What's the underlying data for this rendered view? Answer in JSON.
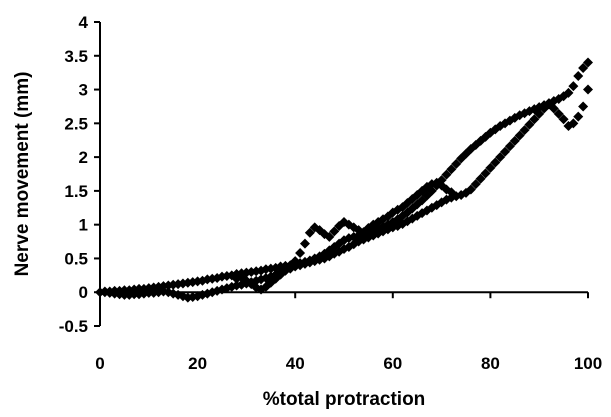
{
  "chart_data": {
    "type": "scatter",
    "title": "",
    "xlabel": "%total protraction",
    "ylabel": "Nerve movement (mm)",
    "xlim": [
      0,
      100
    ],
    "ylim": [
      -0.5,
      4
    ],
    "x_ticks": [
      0,
      20,
      40,
      60,
      80,
      100
    ],
    "y_ticks": [
      -0.5,
      0,
      0.5,
      1,
      1.5,
      2,
      2.5,
      3,
      3.5,
      4
    ],
    "x_tick_labels": [
      "0",
      "20",
      "40",
      "60",
      "80",
      "100"
    ],
    "y_tick_labels": [
      "-0.5",
      "0",
      "0.5",
      "1",
      "1.5",
      "2",
      "2.5",
      "3",
      "3.5",
      "4"
    ],
    "grid": false,
    "legend": "none",
    "marker": "diamond",
    "marker_color": "#000000",
    "series": [
      {
        "points": [
          [
            0,
            0
          ],
          [
            1,
            0.01
          ],
          [
            2,
            0.01
          ],
          [
            3,
            0.02
          ],
          [
            4,
            0.02
          ],
          [
            5,
            0.03
          ],
          [
            6,
            0.03
          ],
          [
            7,
            0.04
          ],
          [
            8,
            0.05
          ],
          [
            9,
            0.05
          ],
          [
            10,
            0.06
          ],
          [
            11,
            0.07
          ],
          [
            12,
            0.08
          ],
          [
            13,
            0.09
          ],
          [
            14,
            0.1
          ],
          [
            15,
            0.11
          ],
          [
            16,
            0.12
          ],
          [
            17,
            0.13
          ],
          [
            18,
            0.14
          ],
          [
            19,
            0.15
          ],
          [
            20,
            0.16
          ],
          [
            21,
            0.17
          ],
          [
            22,
            0.19
          ],
          [
            23,
            0.2
          ],
          [
            24,
            0.21
          ],
          [
            25,
            0.23
          ],
          [
            26,
            0.24
          ],
          [
            27,
            0.25
          ],
          [
            28,
            0.27
          ],
          [
            29,
            0.28
          ],
          [
            30,
            0.29
          ],
          [
            31,
            0.3
          ],
          [
            32,
            0.31
          ],
          [
            33,
            0.32
          ],
          [
            34,
            0.34
          ],
          [
            35,
            0.35
          ],
          [
            36,
            0.36
          ],
          [
            37,
            0.38
          ],
          [
            38,
            0.39
          ],
          [
            39,
            0.4
          ],
          [
            40,
            0.42
          ],
          [
            41,
            0.43
          ],
          [
            42,
            0.45
          ],
          [
            43,
            0.47
          ],
          [
            44,
            0.5
          ],
          [
            45,
            0.53
          ],
          [
            46,
            0.57
          ],
          [
            47,
            0.62
          ],
          [
            48,
            0.67
          ],
          [
            49,
            0.72
          ],
          [
            50,
            0.77
          ],
          [
            51,
            0.8
          ],
          [
            52,
            0.82
          ],
          [
            53,
            0.84
          ],
          [
            54,
            0.86
          ],
          [
            55,
            0.88
          ],
          [
            56,
            0.91
          ],
          [
            57,
            0.94
          ],
          [
            58,
            0.97
          ],
          [
            59,
            1.0
          ],
          [
            60,
            1.04
          ],
          [
            61,
            1.08
          ],
          [
            62,
            1.13
          ],
          [
            63,
            1.18
          ],
          [
            64,
            1.24
          ],
          [
            65,
            1.3
          ],
          [
            66,
            1.36
          ],
          [
            67,
            1.43
          ],
          [
            68,
            1.5
          ],
          [
            69,
            1.58
          ],
          [
            70,
            1.66
          ],
          [
            71,
            1.74
          ],
          [
            72,
            1.82
          ],
          [
            73,
            1.9
          ],
          [
            74,
            1.98
          ],
          [
            75,
            2.05
          ],
          [
            76,
            2.12
          ],
          [
            77,
            2.18
          ],
          [
            78,
            2.24
          ],
          [
            79,
            2.3
          ],
          [
            80,
            2.36
          ],
          [
            81,
            2.41
          ],
          [
            82,
            2.46
          ],
          [
            83,
            2.5
          ],
          [
            84,
            2.54
          ],
          [
            85,
            2.58
          ],
          [
            86,
            2.62
          ],
          [
            87,
            2.65
          ],
          [
            88,
            2.68
          ],
          [
            89,
            2.71
          ],
          [
            90,
            2.74
          ],
          [
            91,
            2.77
          ],
          [
            92,
            2.8
          ],
          [
            93,
            2.83
          ],
          [
            94,
            2.86
          ],
          [
            95,
            2.9
          ],
          [
            96,
            2.95
          ],
          [
            97,
            3.05
          ],
          [
            98,
            3.2
          ],
          [
            99,
            3.32
          ],
          [
            100,
            3.4
          ]
        ]
      },
      {
        "points": [
          [
            100,
            3.0
          ],
          [
            99,
            2.75
          ],
          [
            98,
            2.6
          ],
          [
            97,
            2.5
          ],
          [
            96,
            2.46
          ],
          [
            95,
            2.56
          ],
          [
            94,
            2.64
          ],
          [
            93,
            2.72
          ],
          [
            92,
            2.78
          ],
          [
            91,
            2.72
          ],
          [
            90,
            2.64
          ],
          [
            89,
            2.56
          ],
          [
            88,
            2.48
          ],
          [
            87,
            2.4
          ],
          [
            86,
            2.32
          ],
          [
            85,
            2.24
          ],
          [
            84,
            2.16
          ],
          [
            83,
            2.08
          ],
          [
            82,
            2.0
          ],
          [
            81,
            1.92
          ],
          [
            80,
            1.84
          ],
          [
            79,
            1.76
          ],
          [
            78,
            1.68
          ],
          [
            77,
            1.6
          ],
          [
            76,
            1.52
          ],
          [
            75,
            1.47
          ],
          [
            74,
            1.44
          ],
          [
            73,
            1.42
          ],
          [
            72,
            1.4
          ],
          [
            71,
            1.37
          ],
          [
            70,
            1.33
          ],
          [
            69,
            1.29
          ],
          [
            68,
            1.25
          ],
          [
            67,
            1.21
          ],
          [
            66,
            1.17
          ],
          [
            65,
            1.13
          ],
          [
            64,
            1.09
          ],
          [
            63,
            1.05
          ],
          [
            62,
            1.01
          ],
          [
            61,
            0.98
          ],
          [
            60,
            0.96
          ],
          [
            59,
            0.93
          ],
          [
            58,
            0.9
          ],
          [
            57,
            0.87
          ],
          [
            56,
            0.84
          ],
          [
            55,
            0.81
          ],
          [
            54,
            0.78
          ],
          [
            53,
            0.75
          ],
          [
            52,
            0.71
          ],
          [
            51,
            0.67
          ],
          [
            50,
            0.64
          ],
          [
            49,
            0.6
          ],
          [
            48,
            0.57
          ],
          [
            47,
            0.53
          ],
          [
            46,
            0.5
          ],
          [
            45,
            0.48
          ],
          [
            44,
            0.46
          ],
          [
            43,
            0.44
          ],
          [
            42,
            0.42
          ],
          [
            41,
            0.4
          ],
          [
            40,
            0.38
          ],
          [
            39,
            0.35
          ],
          [
            38,
            0.32
          ],
          [
            37,
            0.29
          ],
          [
            36,
            0.26
          ],
          [
            35,
            0.23
          ],
          [
            34,
            0.21
          ],
          [
            33,
            0.19
          ],
          [
            32,
            0.17
          ],
          [
            31,
            0.15
          ],
          [
            30,
            0.13
          ],
          [
            29,
            0.11
          ],
          [
            28,
            0.1
          ],
          [
            27,
            0.08
          ],
          [
            26,
            0.06
          ],
          [
            25,
            0.04
          ],
          [
            24,
            0.02
          ],
          [
            23,
            0.0
          ],
          [
            22,
            -0.02
          ],
          [
            21,
            -0.04
          ],
          [
            20,
            -0.06
          ],
          [
            19,
            -0.07
          ],
          [
            18,
            -0.08
          ],
          [
            17,
            -0.06
          ],
          [
            16,
            -0.04
          ],
          [
            15,
            -0.02
          ],
          [
            14,
            0.0
          ],
          [
            13,
            0.01
          ],
          [
            12,
            0.0
          ],
          [
            11,
            -0.01
          ],
          [
            10,
            -0.01
          ],
          [
            9,
            -0.02
          ],
          [
            8,
            -0.03
          ],
          [
            7,
            -0.03
          ],
          [
            6,
            -0.04
          ],
          [
            5,
            -0.04
          ],
          [
            4,
            -0.03
          ],
          [
            3,
            -0.02
          ],
          [
            2,
            -0.01
          ],
          [
            1,
            0.0
          ]
        ]
      },
      {
        "points": [
          [
            28,
            0.2
          ],
          [
            29,
            0.22
          ],
          [
            30,
            0.17
          ],
          [
            31,
            0.12
          ],
          [
            32,
            0.07
          ],
          [
            33,
            0.04
          ],
          [
            34,
            0.08
          ],
          [
            35,
            0.14
          ],
          [
            36,
            0.2
          ],
          [
            37,
            0.26
          ],
          [
            38,
            0.32
          ],
          [
            39,
            0.38
          ],
          [
            40,
            0.46
          ],
          [
            41,
            0.58
          ],
          [
            42,
            0.72
          ],
          [
            43,
            0.88
          ],
          [
            44,
            0.96
          ],
          [
            45,
            0.92
          ],
          [
            46,
            0.86
          ],
          [
            47,
            0.82
          ],
          [
            48,
            0.9
          ],
          [
            49,
            0.98
          ],
          [
            50,
            1.04
          ],
          [
            51,
            1.0
          ],
          [
            52,
            0.96
          ],
          [
            53,
            0.92
          ],
          [
            54,
            0.89
          ],
          [
            55,
            0.95
          ],
          [
            56,
            1.0
          ],
          [
            57,
            1.04
          ],
          [
            58,
            1.08
          ],
          [
            59,
            1.12
          ],
          [
            60,
            1.18
          ],
          [
            61,
            1.22
          ],
          [
            62,
            1.26
          ],
          [
            63,
            1.32
          ],
          [
            64,
            1.38
          ],
          [
            65,
            1.44
          ],
          [
            66,
            1.5
          ],
          [
            67,
            1.56
          ],
          [
            68,
            1.6
          ],
          [
            69,
            1.62
          ],
          [
            70,
            1.58
          ],
          [
            71,
            1.52
          ],
          [
            72,
            1.48
          ]
        ]
      }
    ]
  }
}
